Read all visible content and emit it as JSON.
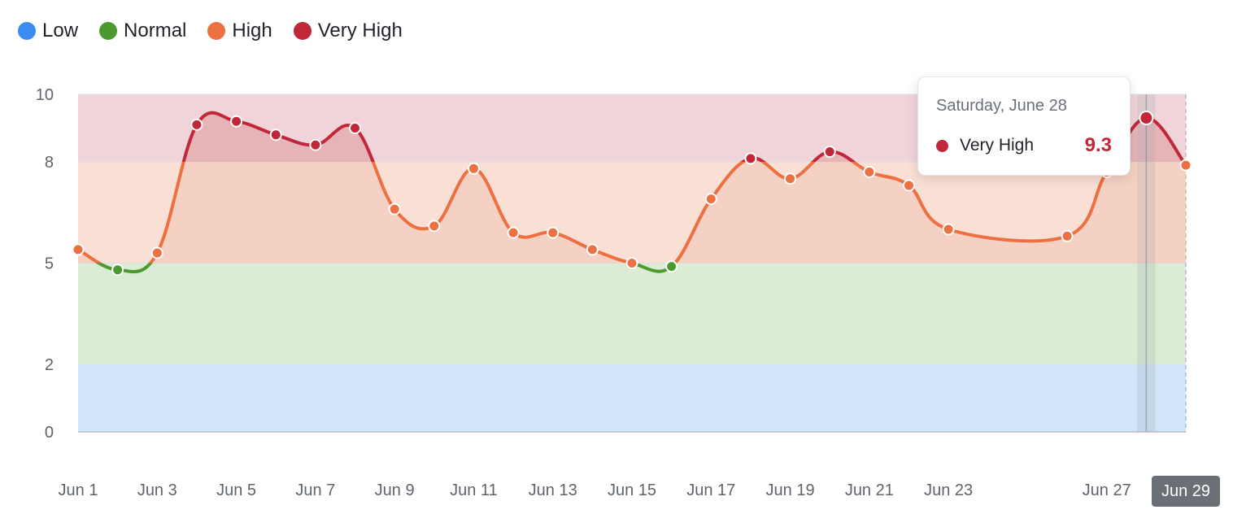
{
  "legend": [
    {
      "label": "Low",
      "color": "#3b8cf0"
    },
    {
      "label": "Normal",
      "color": "#4a9a30"
    },
    {
      "label": "High",
      "color": "#ec7041"
    },
    {
      "label": "Very High",
      "color": "#c0283a"
    }
  ],
  "tooltip": {
    "title": "Saturday, June 28",
    "series_label": "Very High",
    "value": "9.3"
  },
  "chart_data": {
    "type": "line",
    "x": [
      "Jun 1",
      "Jun 2",
      "Jun 3",
      "Jun 4",
      "Jun 5",
      "Jun 6",
      "Jun 7",
      "Jun 8",
      "Jun 9",
      "Jun 10",
      "Jun 11",
      "Jun 12",
      "Jun 13",
      "Jun 14",
      "Jun 15",
      "Jun 16",
      "Jun 17",
      "Jun 18",
      "Jun 19",
      "Jun 20",
      "Jun 21",
      "Jun 22",
      "Jun 23",
      "Jun 24",
      "Jun 25",
      "Jun 26",
      "Jun 27",
      "Jun 28",
      "Jun 29"
    ],
    "values": [
      5.4,
      4.8,
      5.3,
      9.1,
      9.2,
      8.8,
      8.5,
      9.0,
      6.6,
      6.1,
      7.8,
      5.9,
      5.9,
      5.4,
      5.0,
      4.9,
      6.9,
      8.1,
      7.5,
      8.3,
      7.7,
      7.3,
      6.0,
      null,
      null,
      5.8,
      7.7,
      9.3,
      7.9
    ],
    "x_tick_labels": [
      "Jun 1",
      "Jun 3",
      "Jun 5",
      "Jun 7",
      "Jun 9",
      "Jun 11",
      "Jun 13",
      "Jun 15",
      "Jun 17",
      "Jun 19",
      "Jun 21",
      "Jun 23",
      "Jun 27",
      "Jun 29"
    ],
    "y_ticks": [
      0,
      2,
      5,
      8,
      10
    ],
    "ylim": [
      0,
      10
    ],
    "bands": [
      {
        "name": "Low",
        "from": 0,
        "to": 2,
        "color": "#d1e5fa"
      },
      {
        "name": "Normal",
        "from": 2,
        "to": 5,
        "color": "#dcebd4"
      },
      {
        "name": "High",
        "from": 5,
        "to": 8,
        "color": "#f9dfd4"
      },
      {
        "name": "Very High",
        "from": 8,
        "to": 10,
        "color": "#f1d4d9"
      }
    ],
    "highlighted_x": "Jun 28",
    "active_tick": "Jun 29",
    "legend_position": "top-left",
    "grid": true
  }
}
